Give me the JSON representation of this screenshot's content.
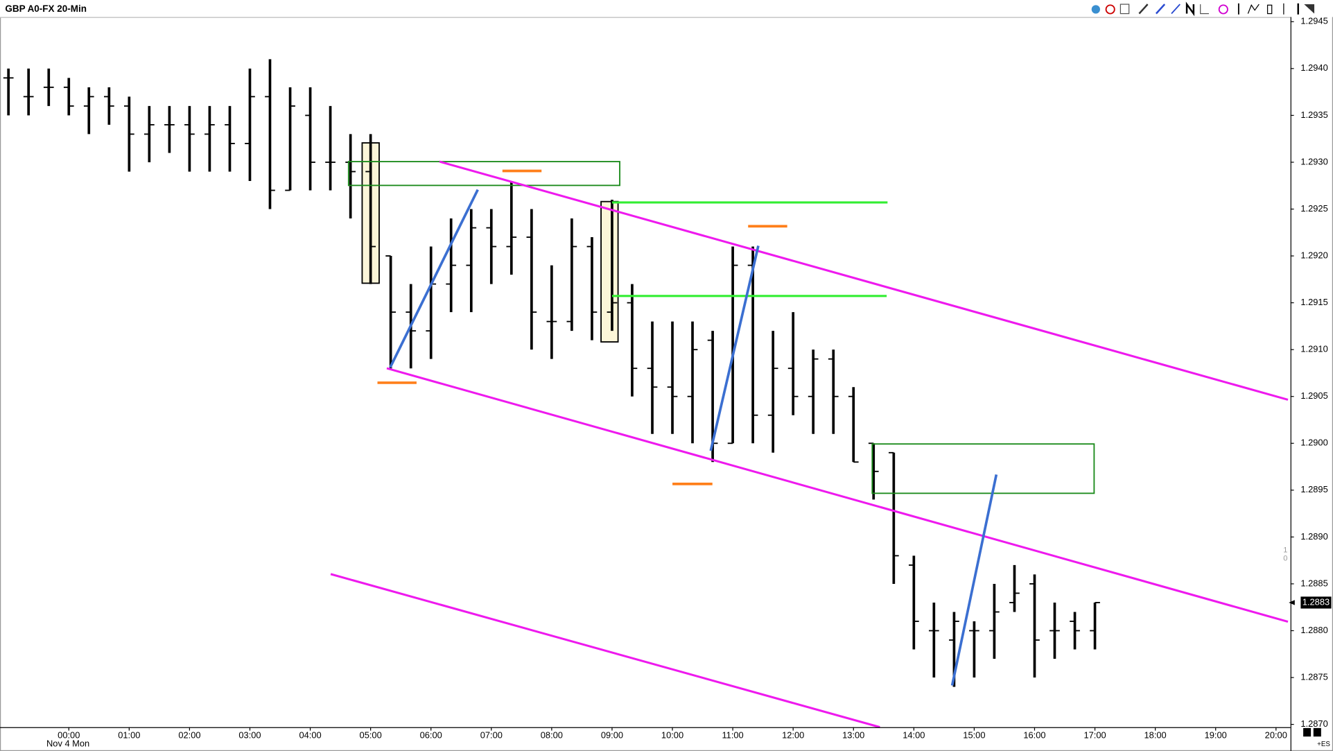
{
  "chart_data": {
    "type": "ohlc",
    "title": "GBP A0-FX 20-Min",
    "x": [
      -1,
      -0.667,
      -0.333,
      0,
      0.333,
      0.667,
      1,
      1.333,
      1.667,
      2,
      2.333,
      2.667,
      3,
      3.333,
      3.667,
      4,
      4.333,
      4.667,
      5,
      5.333,
      5.667,
      6,
      6.333,
      6.667,
      7,
      7.333,
      7.667,
      8,
      8.333,
      8.667,
      9,
      9.333,
      9.667,
      10,
      10.333,
      10.667,
      11,
      11.333,
      11.667,
      12,
      12.333,
      12.667,
      13,
      13.333,
      13.667,
      14,
      14.333,
      14.667,
      15,
      15.333,
      15.667,
      16,
      16.333,
      16.667,
      17
    ],
    "open": [
      1.2939,
      1.2937,
      1.2938,
      1.2938,
      1.2936,
      1.2937,
      1.2936,
      1.2933,
      1.2934,
      1.2934,
      1.2933,
      1.2934,
      1.2932,
      1.2937,
      1.2927,
      1.2935,
      1.293,
      1.293,
      1.2929,
      1.292,
      1.2914,
      1.2912,
      1.2917,
      1.2919,
      1.2923,
      1.2921,
      1.2922,
      1.2913,
      1.2913,
      1.2921,
      1.2914,
      1.2915,
      1.2908,
      1.2906,
      1.2905,
      1.2911,
      1.29,
      1.2919,
      1.2903,
      1.2908,
      1.2905,
      1.2909,
      1.2905,
      1.29,
      1.2899,
      1.2887,
      1.288,
      1.2879,
      1.288,
      1.288,
      1.2883,
      1.2885,
      1.288,
      1.2881,
      1.288
    ],
    "high": [
      1.294,
      1.294,
      1.294,
      1.2939,
      1.2938,
      1.2938,
      1.2937,
      1.2936,
      1.2936,
      1.2936,
      1.2936,
      1.2936,
      1.294,
      1.2941,
      1.2938,
      1.2938,
      1.2936,
      1.2933,
      1.2933,
      1.292,
      1.2917,
      1.2921,
      1.2924,
      1.2925,
      1.2925,
      1.2928,
      1.2925,
      1.2919,
      1.2924,
      1.2922,
      1.2926,
      1.2917,
      1.2913,
      1.2913,
      1.2913,
      1.2912,
      1.2921,
      1.2921,
      1.2912,
      1.2914,
      1.291,
      1.291,
      1.2906,
      1.29,
      1.2899,
      1.2888,
      1.2883,
      1.2882,
      1.2881,
      1.2885,
      1.2887,
      1.2886,
      1.2883,
      1.2882,
      1.2883
    ],
    "low": [
      1.2935,
      1.2935,
      1.2936,
      1.2935,
      1.2933,
      1.2934,
      1.2929,
      1.293,
      1.2931,
      1.2929,
      1.2929,
      1.2929,
      1.2928,
      1.2925,
      1.2927,
      1.2927,
      1.2927,
      1.2924,
      1.2917,
      1.2908,
      1.2908,
      1.2909,
      1.2914,
      1.2914,
      1.2917,
      1.2918,
      1.291,
      1.2909,
      1.2912,
      1.2911,
      1.2912,
      1.2905,
      1.2901,
      1.2901,
      1.29,
      1.2898,
      1.29,
      1.29,
      1.2899,
      1.2903,
      1.2901,
      1.2901,
      1.2898,
      1.2894,
      1.2885,
      1.2878,
      1.2875,
      1.2874,
      1.2875,
      1.2877,
      1.2882,
      1.2875,
      1.2877,
      1.2878,
      1.2878
    ],
    "close": [
      1.2939,
      1.2937,
      1.2938,
      1.2936,
      1.2937,
      1.2936,
      1.2933,
      1.2934,
      1.2934,
      1.2933,
      1.2934,
      1.2932,
      1.2937,
      1.2927,
      1.2936,
      1.293,
      1.293,
      1.2929,
      1.2921,
      1.2914,
      1.2912,
      1.2917,
      1.2919,
      1.2923,
      1.2921,
      1.2922,
      1.2914,
      1.2913,
      1.2921,
      1.2914,
      1.2915,
      1.2908,
      1.2906,
      1.2905,
      1.291,
      1.29,
      1.2919,
      1.2903,
      1.2908,
      1.2905,
      1.2909,
      1.2905,
      1.2898,
      1.2897,
      1.2888,
      1.2881,
      1.288,
      1.2881,
      1.288,
      1.2882,
      1.2884,
      1.2879,
      1.288,
      1.288,
      1.2883
    ],
    "color": "#000000",
    "xlim": [
      -1.14,
      20.24
    ],
    "xticks": [
      {
        "value": 0,
        "label": "00:00"
      },
      {
        "value": 1,
        "label": "01:00"
      },
      {
        "value": 2,
        "label": "02:00"
      },
      {
        "value": 3,
        "label": "03:00"
      },
      {
        "value": 4,
        "label": "04:00"
      },
      {
        "value": 5,
        "label": "05:00"
      },
      {
        "value": 6,
        "label": "06:00"
      },
      {
        "value": 7,
        "label": "07:00"
      },
      {
        "value": 8,
        "label": "08:00"
      },
      {
        "value": 9,
        "label": "09:00"
      },
      {
        "value": 10,
        "label": "10:00"
      },
      {
        "value": 11,
        "label": "11:00"
      },
      {
        "value": 12,
        "label": "12:00"
      },
      {
        "value": 13,
        "label": "13:00"
      },
      {
        "value": 14,
        "label": "14:00"
      },
      {
        "value": 15,
        "label": "15:00"
      },
      {
        "value": 16,
        "label": "16:00"
      },
      {
        "value": 17,
        "label": "17:00"
      },
      {
        "value": 18,
        "label": "18:00"
      },
      {
        "value": 19,
        "label": "19:00"
      },
      {
        "value": 20,
        "label": "20:00"
      }
    ],
    "x_date_label": "Nov 4 Mon",
    "ylim": [
      1.28697,
      1.29455
    ],
    "yticks": [
      {
        "value": 1.287,
        "label": "1.2870"
      },
      1.2875,
      {
        "value": 1.288,
        "label": "1.2880"
      },
      1.2885,
      {
        "value": 1.289,
        "label": "1.2890"
      },
      1.2895,
      {
        "value": 1.29,
        "label": "1.2900"
      },
      1.2905,
      {
        "value": 1.291,
        "label": "1.2910"
      },
      1.2915,
      {
        "value": 1.292,
        "label": "1.2920"
      },
      1.2925,
      {
        "value": 1.293,
        "label": "1.2930"
      },
      1.2935,
      {
        "value": 1.294,
        "label": "1.2940"
      },
      1.2945
    ],
    "last_price": 1.2883,
    "side_labels": [
      "1",
      "0"
    ],
    "corner_label": "+ES"
  }
}
